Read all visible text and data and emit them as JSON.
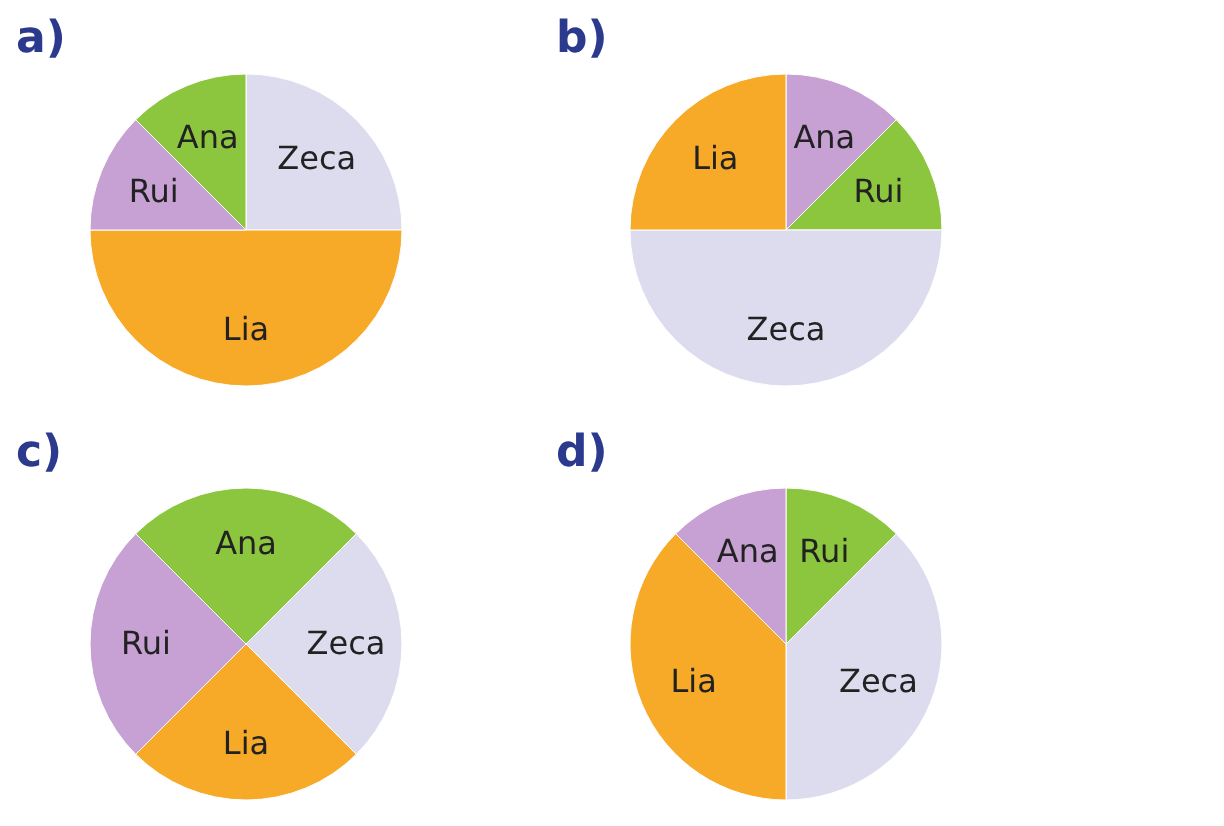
{
  "chart_data": [
    {
      "type": "pie",
      "title": "a)",
      "categories": [
        "Zeca",
        "Lia",
        "Rui",
        "Ana"
      ],
      "values": [
        25,
        50,
        12.5,
        12.5
      ],
      "colors": [
        "#dcdcee",
        "#f7a928",
        "#c7a0d4",
        "#8cc63e"
      ]
    },
    {
      "type": "pie",
      "title": "b)",
      "categories": [
        "Ana",
        "Rui",
        "Zeca",
        "Lia"
      ],
      "values": [
        12.5,
        12.5,
        50,
        25
      ],
      "colors": [
        "#c7a0d4",
        "#8cc63e",
        "#dcdcee",
        "#f7a928"
      ]
    },
    {
      "type": "pie",
      "title": "c)",
      "categories": [
        "Ana",
        "Zeca",
        "Lia",
        "Rui"
      ],
      "values": [
        25,
        25,
        25,
        25
      ],
      "colors": [
        "#8cc63e",
        "#dcdcee",
        "#f7a928",
        "#c7a0d4"
      ]
    },
    {
      "type": "pie",
      "title": "d)",
      "categories": [
        "Rui",
        "Zeca",
        "Lia",
        "Ana"
      ],
      "values": [
        12.5,
        37.5,
        37.5,
        12.5
      ],
      "colors": [
        "#8cc63e",
        "#dcdcee",
        "#f7a928",
        "#c7a0d4"
      ]
    }
  ]
}
